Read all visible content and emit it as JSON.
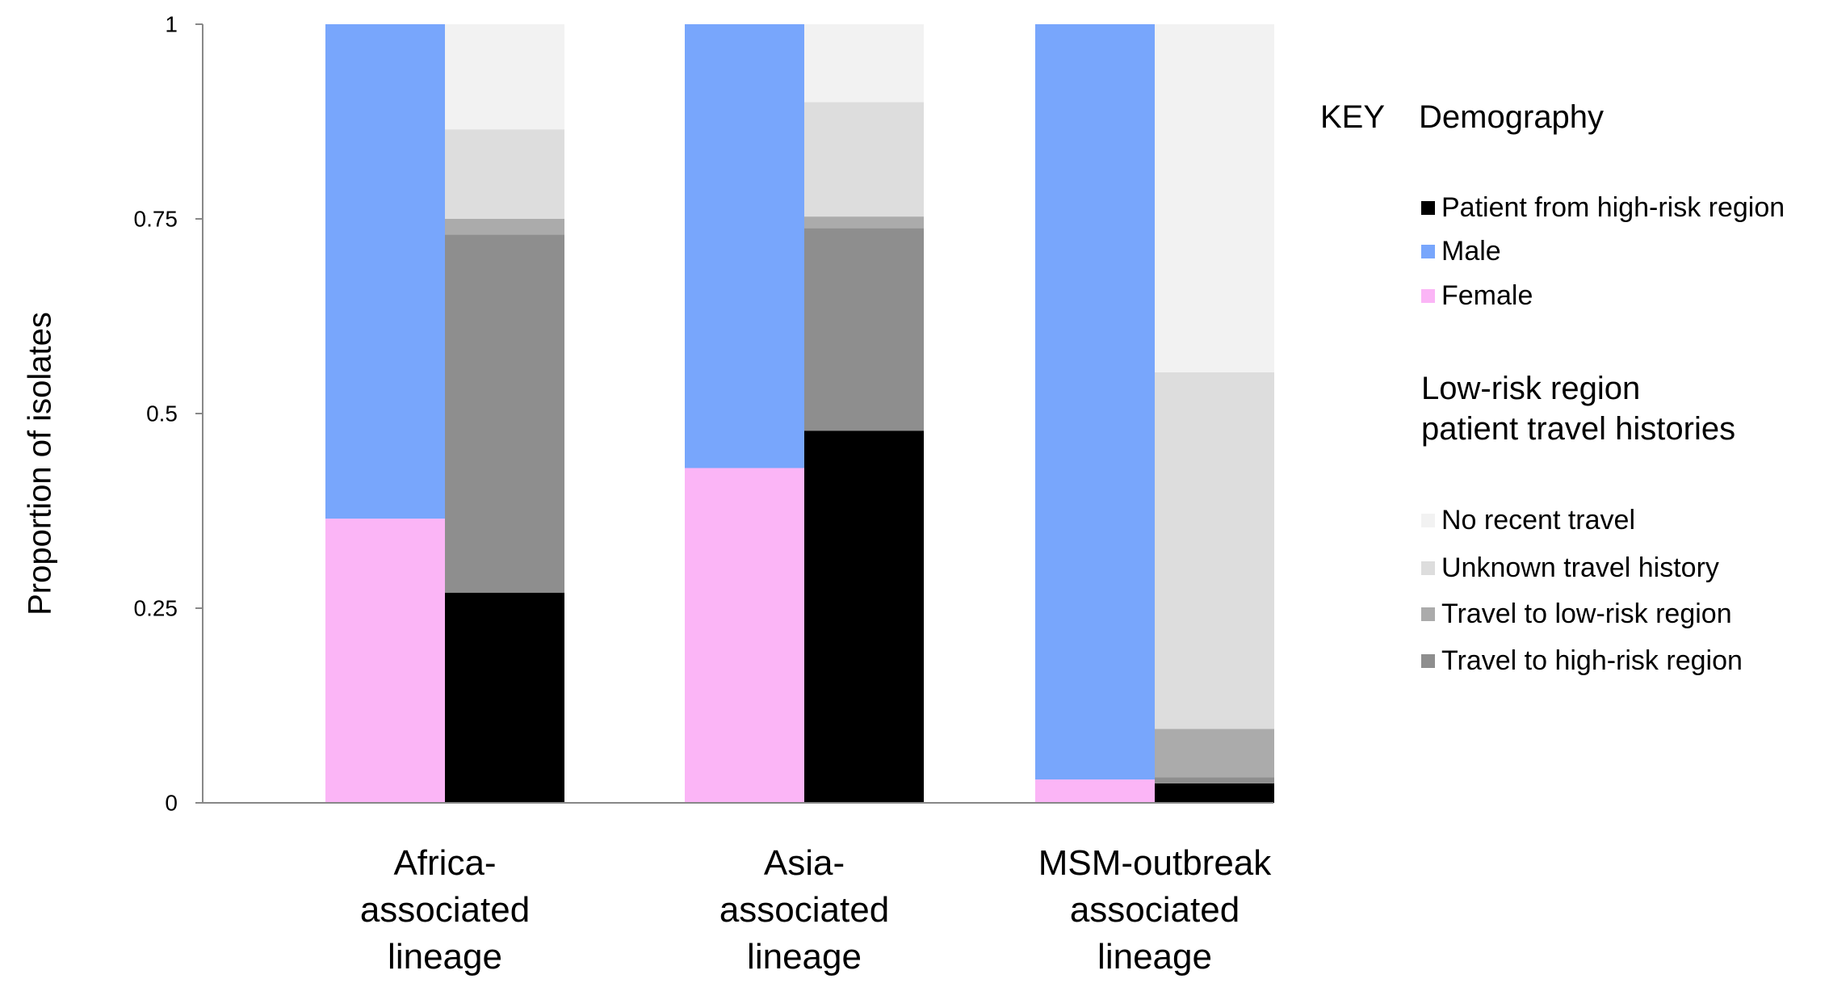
{
  "chart_data": {
    "type": "bar",
    "stacked": true,
    "ylabel": "Proportion of isolates",
    "ylim": [
      0,
      1
    ],
    "yticks": [
      "0",
      "0.25",
      "0.5",
      "0.75",
      "1"
    ],
    "ytick_values": [
      0,
      0.25,
      0.5,
      0.75,
      1
    ],
    "grid": false,
    "categories": [
      {
        "lines": [
          "Africa-",
          "associated",
          "lineage"
        ]
      },
      {
        "lines": [
          "Asia-",
          "associated",
          "lineage"
        ]
      },
      {
        "lines": [
          "MSM-outbreak",
          "associated",
          "lineage"
        ]
      }
    ],
    "bars": [
      {
        "group": 0,
        "position": "left",
        "stack": [
          {
            "series": "Female",
            "value": 0.365
          },
          {
            "series": "Male",
            "value": 0.635
          }
        ]
      },
      {
        "group": 0,
        "position": "right",
        "stack": [
          {
            "series": "Patient from high-risk region",
            "value": 0.27
          },
          {
            "series": "Travel to high-risk region",
            "value": 0.46
          },
          {
            "series": "Travel to low-risk region",
            "value": 0.02
          },
          {
            "series": "Unknown travel history",
            "value": 0.115
          },
          {
            "series": "No recent travel",
            "value": 0.135
          }
        ]
      },
      {
        "group": 1,
        "position": "left",
        "stack": [
          {
            "series": "Female",
            "value": 0.43
          },
          {
            "series": "Male",
            "value": 0.57
          }
        ]
      },
      {
        "group": 1,
        "position": "right",
        "stack": [
          {
            "series": "Patient from high-risk region",
            "value": 0.478
          },
          {
            "series": "Travel to high-risk region",
            "value": 0.26
          },
          {
            "series": "Travel to low-risk region",
            "value": 0.015
          },
          {
            "series": "Unknown travel history",
            "value": 0.147
          },
          {
            "series": "No recent travel",
            "value": 0.1
          }
        ]
      },
      {
        "group": 2,
        "position": "left",
        "stack": [
          {
            "series": "Female",
            "value": 0.03
          },
          {
            "series": "Male",
            "value": 0.97
          }
        ]
      },
      {
        "group": 2,
        "position": "right",
        "stack": [
          {
            "series": "Patient from high-risk region",
            "value": 0.025
          },
          {
            "series": "Travel to high-risk region",
            "value": 0.008
          },
          {
            "series": "Travel to low-risk region",
            "value": 0.062
          },
          {
            "series": "Unknown travel history",
            "value": 0.458
          },
          {
            "series": "No recent travel",
            "value": 0.447
          }
        ]
      }
    ],
    "series_colors": {
      "Patient from high-risk region": "#000000",
      "Male": "#78A6FC",
      "Female": "#FBB5F6",
      "No recent travel": "#F2F2F2",
      "Unknown travel history": "#DDDDDD",
      "Travel to low-risk region": "#ABABAB",
      "Travel to high-risk region": "#8E8E8E"
    }
  },
  "legend": {
    "key_label": "KEY",
    "demography_title": "Demography",
    "demography_items": [
      {
        "label": "Patient from high-risk region",
        "color": "#000000"
      },
      {
        "label": "Male",
        "color": "#78A6FC"
      },
      {
        "label": "Female",
        "color": "#FBB5F6"
      }
    ],
    "travel_title_line1": "Low-risk region",
    "travel_title_line2": "patient travel histories",
    "travel_items": [
      {
        "label": "No recent travel",
        "color": "#F2F2F2"
      },
      {
        "label": "Unknown travel history",
        "color": "#DDDDDD"
      },
      {
        "label": "Travel to low-risk region",
        "color": "#ABABAB"
      },
      {
        "label": "Travel to high-risk region",
        "color": "#8E8E8E"
      }
    ]
  }
}
